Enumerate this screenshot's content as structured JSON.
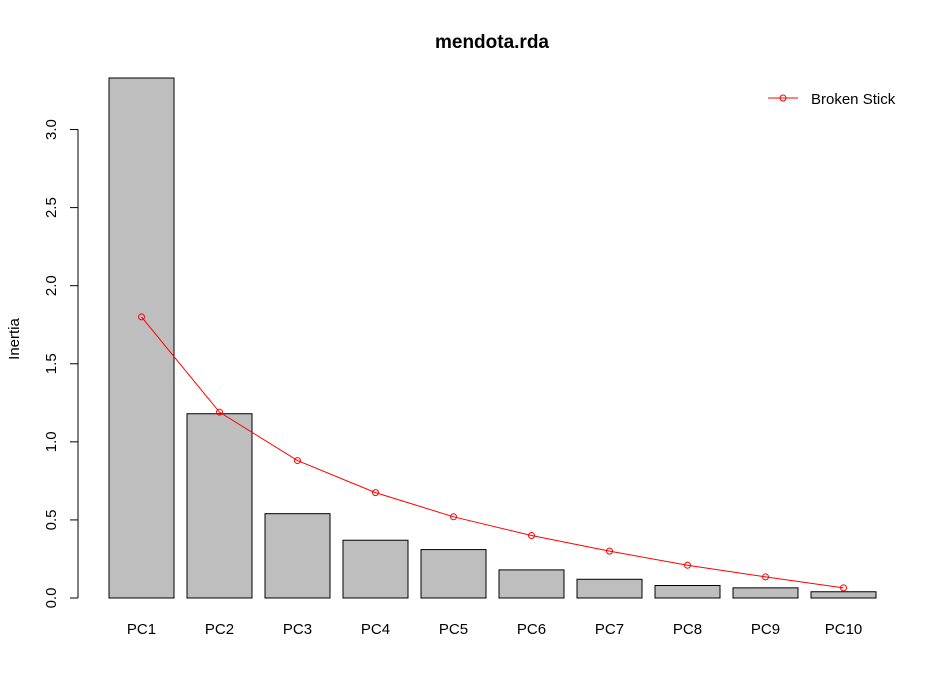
{
  "chart_data": {
    "type": "bar",
    "title": "mendota.rda",
    "xlabel": "",
    "ylabel": "Inertia",
    "categories": [
      "PC1",
      "PC2",
      "PC3",
      "PC4",
      "PC5",
      "PC6",
      "PC7",
      "PC8",
      "PC9",
      "PC10"
    ],
    "series": [
      {
        "type": "bar",
        "values": [
          3.33,
          1.18,
          0.54,
          0.37,
          0.31,
          0.18,
          0.12,
          0.08,
          0.065,
          0.04
        ],
        "color": "#bebebe"
      },
      {
        "name": "Broken Stick",
        "type": "line",
        "marker": "open-circle",
        "values": [
          1.8,
          1.19,
          0.88,
          0.675,
          0.52,
          0.4,
          0.3,
          0.21,
          0.135,
          0.065
        ],
        "color": "#ff0000"
      }
    ],
    "ylim": [
      0,
      3.33
    ],
    "yticks": [
      "0.0",
      "0.5",
      "1.0",
      "1.5",
      "2.0",
      "2.5",
      "3.0"
    ],
    "legend_position": "top-right",
    "grid": false
  }
}
